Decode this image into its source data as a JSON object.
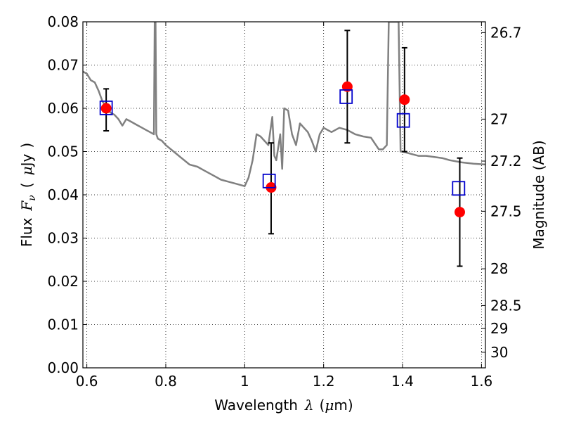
{
  "chart_data": {
    "type": "scatter",
    "x_label_prefix": "Wavelength",
    "x_label_symbol": "λ",
    "x_label_unit_open": "(",
    "x_label_unit_mu": "μ",
    "x_label_unit_rest": "m)",
    "y_label_prefix": "Flux",
    "y_label_symbol": "F",
    "y_label_subscript": "ν",
    "y_label_unit_open": "(",
    "y_label_unit_mu": "μ",
    "y_label_unit_rest": "Jy",
    "y_label_unit_close": ")",
    "y2_label": "Magnitude (AB)",
    "xlim": [
      0.59,
      1.61
    ],
    "ylim": [
      0.0,
      0.08
    ],
    "grid": true,
    "x_ticks": [
      0.6,
      0.8,
      1.0,
      1.2,
      1.4,
      1.6
    ],
    "x_tick_labels": [
      "0.6",
      "0.8",
      "1",
      "1.2",
      "1.4",
      "1.6"
    ],
    "y_ticks": [
      0.0,
      0.01,
      0.02,
      0.03,
      0.04,
      0.05,
      0.06,
      0.07,
      0.08
    ],
    "y_tick_labels": [
      "0.00",
      "0.01",
      "0.02",
      "0.03",
      "0.04",
      "0.05",
      "0.06",
      "0.07",
      "0.08"
    ],
    "y2_ticks": [
      {
        "label": "26.7",
        "flux": 0.0775
      },
      {
        "label": "27",
        "flux": 0.0575
      },
      {
        "label": "27.2",
        "flux": 0.0478
      },
      {
        "label": "27.5",
        "flux": 0.0362
      },
      {
        "label": "28",
        "flux": 0.0229
      },
      {
        "label": "28.5",
        "flux": 0.0144
      },
      {
        "label": "29",
        "flux": 0.0091
      },
      {
        "label": "30",
        "flux": 0.0036
      }
    ],
    "colors": {
      "model": "#808080",
      "observed": "#ff0000",
      "model_phot": "#0000cc",
      "errorbar": "#000000",
      "grid": "#000000"
    },
    "series": [
      {
        "style": "line",
        "x": [
          0.59,
          0.6,
          0.61,
          0.62,
          0.63,
          0.64,
          0.65,
          0.66,
          0.67,
          0.68,
          0.69,
          0.7,
          0.71,
          0.72,
          0.73,
          0.74,
          0.75,
          0.76,
          0.77,
          0.772,
          0.774,
          0.776,
          0.78,
          0.79,
          0.8,
          0.82,
          0.84,
          0.86,
          0.88,
          0.9,
          0.92,
          0.94,
          0.96,
          0.98,
          1.0,
          1.01,
          1.02,
          1.03,
          1.04,
          1.05,
          1.06,
          1.07,
          1.075,
          1.08,
          1.09,
          1.095,
          1.1,
          1.11,
          1.12,
          1.13,
          1.14,
          1.15,
          1.16,
          1.17,
          1.18,
          1.19,
          1.2,
          1.21,
          1.22,
          1.24,
          1.26,
          1.28,
          1.3,
          1.32,
          1.34,
          1.35,
          1.36,
          1.365,
          1.37,
          1.385,
          1.39,
          1.395,
          1.4,
          1.42,
          1.44,
          1.46,
          1.5,
          1.52,
          1.55,
          1.58,
          1.61
        ],
        "y": [
          0.0685,
          0.068,
          0.0665,
          0.066,
          0.064,
          0.0615,
          0.0605,
          0.059,
          0.0585,
          0.0575,
          0.056,
          0.0575,
          0.057,
          0.0565,
          0.056,
          0.0555,
          0.055,
          0.0545,
          0.054,
          0.08,
          0.08,
          0.054,
          0.053,
          0.0525,
          0.0515,
          0.05,
          0.0485,
          0.047,
          0.0465,
          0.0455,
          0.0445,
          0.0435,
          0.043,
          0.0425,
          0.042,
          0.044,
          0.048,
          0.054,
          0.0535,
          0.0525,
          0.0515,
          0.058,
          0.049,
          0.048,
          0.054,
          0.046,
          0.06,
          0.0595,
          0.054,
          0.0515,
          0.0565,
          0.0555,
          0.0545,
          0.0525,
          0.05,
          0.054,
          0.0555,
          0.055,
          0.0545,
          0.0555,
          0.055,
          0.054,
          0.0535,
          0.0532,
          0.0505,
          0.0505,
          0.0515,
          0.08,
          0.08,
          0.08,
          0.08,
          0.05,
          0.05,
          0.0495,
          0.049,
          0.049,
          0.0485,
          0.048,
          0.0475,
          0.0472,
          0.047
        ]
      },
      {
        "style": "errorbar",
        "x": [
          0.649,
          1.067,
          1.26,
          1.405,
          1.545
        ],
        "y": [
          0.06,
          0.0417,
          0.065,
          0.062,
          0.036
        ],
        "yerr_low": [
          0.0548,
          0.031,
          0.052,
          0.05,
          0.0235
        ],
        "yerr_high": [
          0.0645,
          0.052,
          0.078,
          0.074,
          0.0485
        ]
      },
      {
        "style": "markers-square",
        "x": [
          0.649,
          1.062,
          1.257,
          1.402,
          1.542
        ],
        "y": [
          0.0601,
          0.0432,
          0.0627,
          0.0572,
          0.0415
        ]
      }
    ]
  }
}
